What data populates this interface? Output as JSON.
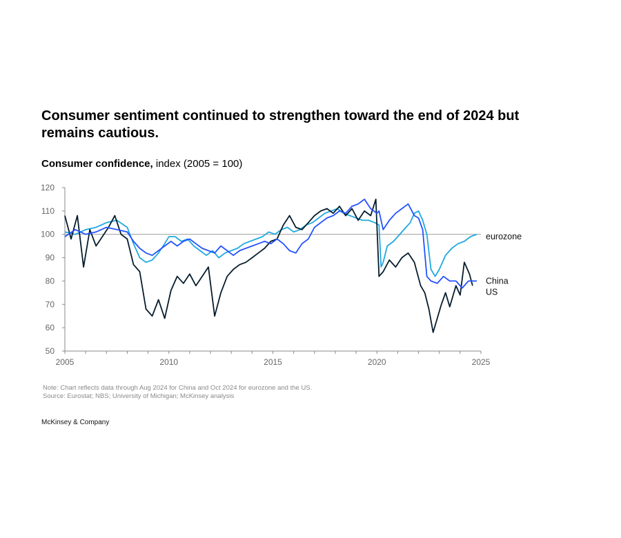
{
  "header": {
    "title": "Consumer sentiment continued to strengthen toward the end of 2024 but remains cautious.",
    "subtitle_bold": "Consumer confidence,",
    "subtitle_rest": " index (2005 = 100)"
  },
  "footer": {
    "note": "Note: Chart reflects data through Aug 2024 for China and Oct 2024 for eurozone and the US.",
    "source": "Source: Eurostat; NBS; University of Michigan; McKinsey analysis",
    "brand": "McKinsey & Company"
  },
  "colors": {
    "eurozone": "#1fa8e0",
    "china": "#051c2c",
    "us": "#2251ff",
    "reference": "#9a9a9a",
    "axis": "#8a8a8a"
  },
  "chart_data": {
    "type": "line",
    "title": "Consumer confidence, index (2005 = 100)",
    "xlabel": "",
    "ylabel": "",
    "xlim": [
      2005,
      2025
    ],
    "ylim": [
      50,
      120
    ],
    "y_ticks": [
      "50",
      "60",
      "70",
      "80",
      "90",
      "100",
      "110",
      "120"
    ],
    "x_ticks": [
      "2005",
      "2010",
      "2015",
      "2020",
      "2025"
    ],
    "reference_line": 100,
    "grid": false,
    "legend": "direct labels at right end of lines",
    "series": [
      {
        "name": "eurozone",
        "x": [
          2005.0,
          2005.5,
          2006.0,
          2006.5,
          2007.0,
          2007.5,
          2008.0,
          2008.3,
          2008.6,
          2008.9,
          2009.2,
          2009.5,
          2009.8,
          2010.0,
          2010.3,
          2010.6,
          2010.9,
          2011.2,
          2011.5,
          2011.8,
          2012.1,
          2012.4,
          2012.7,
          2013.0,
          2013.3,
          2013.6,
          2013.9,
          2014.2,
          2014.5,
          2014.8,
          2015.1,
          2015.4,
          2015.7,
          2016.0,
          2016.3,
          2016.6,
          2016.9,
          2017.2,
          2017.5,
          2017.8,
          2018.1,
          2018.4,
          2018.7,
          2019.0,
          2019.3,
          2019.6,
          2019.9,
          2020.1,
          2020.2,
          2020.3,
          2020.5,
          2020.8,
          2021.0,
          2021.3,
          2021.6,
          2021.8,
          2022.0,
          2022.2,
          2022.4,
          2022.6,
          2022.8,
          2023.0,
          2023.3,
          2023.6,
          2023.9,
          2024.2,
          2024.5,
          2024.8
        ],
        "values": [
          101,
          100,
          102,
          103,
          105,
          106,
          103,
          96,
          90,
          88,
          89,
          92,
          96,
          99,
          99,
          97,
          98,
          95,
          93,
          91,
          93,
          90,
          92,
          93,
          94,
          96,
          97,
          98,
          99,
          101,
          100,
          102,
          103,
          101,
          102,
          104,
          105,
          107,
          109,
          110,
          111,
          109,
          108,
          107,
          106,
          106,
          105,
          104,
          86,
          88,
          95,
          97,
          99,
          102,
          105,
          109,
          110,
          106,
          100,
          85,
          82,
          85,
          91,
          94,
          96,
          97,
          99,
          100
        ]
      },
      {
        "name": "China",
        "x": [
          2005.0,
          2005.3,
          2005.6,
          2005.9,
          2006.2,
          2006.5,
          2006.8,
          2007.1,
          2007.4,
          2007.7,
          2008.0,
          2008.3,
          2008.6,
          2008.9,
          2009.2,
          2009.5,
          2009.8,
          2010.1,
          2010.4,
          2010.7,
          2011.0,
          2011.3,
          2011.6,
          2011.9,
          2012.2,
          2012.5,
          2012.8,
          2013.1,
          2013.4,
          2013.7,
          2014.0,
          2014.3,
          2014.6,
          2014.9,
          2015.2,
          2015.5,
          2015.8,
          2016.1,
          2016.4,
          2016.7,
          2017.0,
          2017.3,
          2017.6,
          2017.9,
          2018.2,
          2018.5,
          2018.8,
          2019.1,
          2019.4,
          2019.7,
          2019.95,
          2020.1,
          2020.3,
          2020.6,
          2020.9,
          2021.2,
          2021.5,
          2021.8,
          2022.1,
          2022.3,
          2022.5,
          2022.7,
          2022.9,
          2023.1,
          2023.3,
          2023.5,
          2023.8,
          2024.0,
          2024.2,
          2024.45,
          2024.6
        ],
        "values": [
          108,
          98,
          108,
          86,
          102,
          95,
          99,
          103,
          108,
          100,
          98,
          87,
          84,
          68,
          65,
          72,
          64,
          76,
          82,
          79,
          83,
          78,
          82,
          86,
          65,
          75,
          82,
          85,
          87,
          88,
          90,
          92,
          94,
          97,
          98,
          104,
          108,
          103,
          102,
          105,
          108,
          110,
          111,
          109,
          112,
          108,
          111,
          106,
          110,
          108,
          115,
          82,
          84,
          89,
          86,
          90,
          92,
          88,
          78,
          75,
          68,
          58,
          64,
          70,
          75,
          69,
          78,
          74,
          88,
          83,
          78
        ]
      },
      {
        "name": "US",
        "x": [
          2005.0,
          2005.5,
          2006.0,
          2006.5,
          2007.0,
          2007.5,
          2008.0,
          2008.3,
          2008.6,
          2008.9,
          2009.2,
          2009.5,
          2009.8,
          2010.1,
          2010.4,
          2010.7,
          2011.0,
          2011.3,
          2011.6,
          2011.9,
          2012.2,
          2012.5,
          2012.8,
          2013.1,
          2013.4,
          2013.7,
          2014.0,
          2014.3,
          2014.6,
          2014.9,
          2015.2,
          2015.5,
          2015.8,
          2016.1,
          2016.4,
          2016.7,
          2017.0,
          2017.3,
          2017.6,
          2017.9,
          2018.2,
          2018.5,
          2018.8,
          2019.1,
          2019.4,
          2019.7,
          2020.0,
          2020.1,
          2020.3,
          2020.6,
          2020.9,
          2021.2,
          2021.5,
          2021.8,
          2022.0,
          2022.2,
          2022.4,
          2022.6,
          2022.9,
          2023.2,
          2023.5,
          2023.8,
          2024.1,
          2024.4,
          2024.8
        ],
        "values": [
          99,
          102,
          100,
          101,
          103,
          102,
          101,
          97,
          94,
          92,
          91,
          93,
          95,
          97,
          95,
          97,
          98,
          96,
          94,
          93,
          92,
          95,
          93,
          91,
          93,
          94,
          95,
          96,
          97,
          96,
          98,
          96,
          93,
          92,
          96,
          98,
          103,
          105,
          107,
          108,
          110,
          109,
          112,
          113,
          115,
          111,
          109,
          110,
          102,
          106,
          109,
          111,
          113,
          108,
          107,
          102,
          82,
          80,
          79,
          82,
          80,
          80,
          77,
          80,
          80
        ]
      }
    ]
  }
}
